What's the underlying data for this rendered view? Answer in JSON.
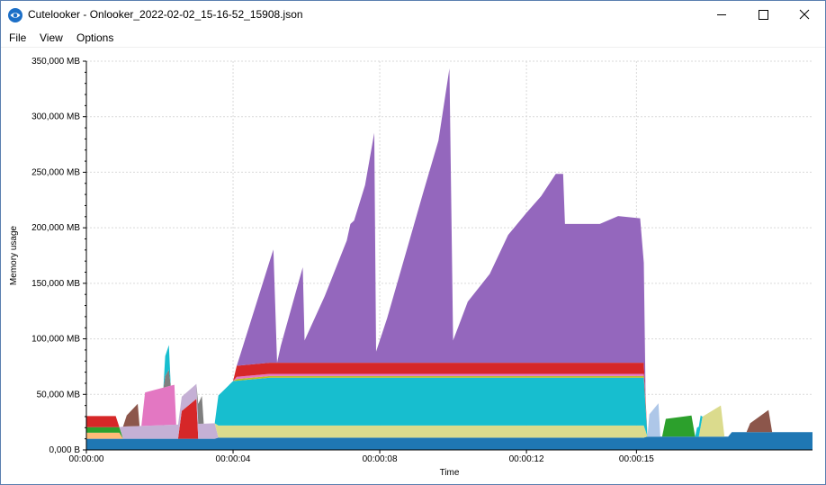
{
  "window": {
    "title": "Cutelooker - Onlooker_2022-02-02_15-16-52_15908.json",
    "icon": "eye-icon",
    "controls": {
      "minimize": "minimize-icon",
      "maximize": "maximize-icon",
      "close": "close-icon"
    }
  },
  "menu": {
    "items": [
      "File",
      "View",
      "Options"
    ]
  },
  "chart_data": {
    "type": "area",
    "stacked": true,
    "xlabel": "Time",
    "ylabel": "Memory usage",
    "x_unit": "seconds",
    "xlim": [
      0,
      19.8
    ],
    "ylim": [
      0,
      350000
    ],
    "x_ticks": [
      {
        "value": 0,
        "label": "00:00:00"
      },
      {
        "value": 4,
        "label": "00:00:04"
      },
      {
        "value": 8,
        "label": "00:00:08"
      },
      {
        "value": 12,
        "label": "00:00:12"
      },
      {
        "value": 15,
        "label": "00:00:15"
      }
    ],
    "y_ticks": [
      {
        "value": 0,
        "label": "0,000 B"
      },
      {
        "value": 50000,
        "label": "50,000 MB"
      },
      {
        "value": 100000,
        "label": "100,000 MB"
      },
      {
        "value": 150000,
        "label": "150,000 MB"
      },
      {
        "value": 200000,
        "label": "200,000 MB"
      },
      {
        "value": 250000,
        "label": "250,000 MB"
      },
      {
        "value": 300000,
        "label": "300,000 MB"
      },
      {
        "value": 350000,
        "label": "350,000 MB"
      }
    ],
    "grid": true,
    "legend": "none",
    "series": [
      {
        "color": "#1f77b4",
        "points": [
          [
            0,
            10000
          ],
          [
            3.5,
            10000
          ],
          [
            3.6,
            11000
          ],
          [
            13.0,
            11000
          ],
          [
            15.2,
            11000
          ],
          [
            15.3,
            12000
          ],
          [
            17.5,
            12000
          ],
          [
            17.6,
            16000
          ],
          [
            19.8,
            16000
          ]
        ]
      },
      {
        "color": "#ffbb78",
        "points": [
          [
            0,
            5500
          ],
          [
            0.9,
            5500
          ],
          [
            1.0,
            0
          ],
          [
            19.8,
            0
          ]
        ]
      },
      {
        "color": "#2ca02c",
        "points": [
          [
            0,
            5000
          ],
          [
            0.9,
            5000
          ],
          [
            1.0,
            0
          ],
          [
            15.7,
            0
          ],
          [
            15.8,
            16000
          ],
          [
            16.5,
            19000
          ],
          [
            16.6,
            0
          ],
          [
            19.8,
            0
          ]
        ]
      },
      {
        "color": "#d62728",
        "points": [
          [
            0,
            10000
          ],
          [
            0.8,
            10000
          ],
          [
            0.9,
            0
          ],
          [
            2.5,
            0
          ],
          [
            2.6,
            25000
          ],
          [
            3.0,
            36000
          ],
          [
            3.05,
            0
          ],
          [
            19.8,
            0
          ]
        ]
      },
      {
        "color": "#c5b0d5",
        "points": [
          [
            0,
            0
          ],
          [
            0.9,
            0
          ],
          [
            1.0,
            11000
          ],
          [
            3.5,
            14000
          ],
          [
            3.6,
            0
          ],
          [
            19.8,
            0
          ]
        ]
      },
      {
        "color": "#dbdb8d",
        "points": [
          [
            0,
            0
          ],
          [
            3.5,
            0
          ],
          [
            3.6,
            11000
          ],
          [
            15.2,
            11000
          ],
          [
            15.3,
            0
          ],
          [
            16.7,
            0
          ],
          [
            16.8,
            18000
          ],
          [
            17.3,
            28000
          ],
          [
            17.4,
            0
          ],
          [
            19.8,
            0
          ]
        ]
      },
      {
        "color": "#17becf",
        "points": [
          [
            0,
            0
          ],
          [
            3.5,
            0
          ],
          [
            3.6,
            27000
          ],
          [
            4.0,
            40000
          ],
          [
            5.0,
            43000
          ],
          [
            15.2,
            43000
          ],
          [
            15.3,
            0
          ],
          [
            19.8,
            0
          ]
        ]
      },
      {
        "color": "#bcbd22",
        "points": [
          [
            0,
            0
          ],
          [
            4.0,
            0
          ],
          [
            4.1,
            1500
          ],
          [
            15.2,
            1500
          ],
          [
            15.3,
            0
          ],
          [
            19.8,
            0
          ]
        ]
      },
      {
        "color": "#e377c2",
        "points": [
          [
            0,
            0
          ],
          [
            1.5,
            0
          ],
          [
            1.6,
            30000
          ],
          [
            2.4,
            36000
          ],
          [
            2.45,
            0
          ],
          [
            4.0,
            0
          ],
          [
            4.1,
            2000
          ],
          [
            15.2,
            2000
          ],
          [
            15.3,
            0
          ],
          [
            19.8,
            0
          ]
        ]
      },
      {
        "color": "#d62728",
        "points": [
          [
            0,
            0
          ],
          [
            4.0,
            0
          ],
          [
            4.1,
            10000
          ],
          [
            15.2,
            10000
          ],
          [
            15.3,
            0
          ],
          [
            19.8,
            0
          ]
        ]
      },
      {
        "color": "#8c564b",
        "points": [
          [
            0,
            0
          ],
          [
            1.0,
            0
          ],
          [
            1.1,
            10000
          ],
          [
            1.4,
            20000
          ],
          [
            1.45,
            0
          ],
          [
            18.0,
            0
          ],
          [
            18.1,
            8000
          ],
          [
            18.6,
            20000
          ],
          [
            18.7,
            0
          ],
          [
            19.8,
            0
          ]
        ]
      },
      {
        "color": "#9467bd",
        "points": [
          [
            0,
            0
          ],
          [
            4.1,
            0
          ],
          [
            4.2,
            10000
          ],
          [
            5.1,
            102000
          ],
          [
            5.2,
            0
          ],
          [
            5.3,
            15000
          ],
          [
            5.9,
            86000
          ],
          [
            5.95,
            20000
          ],
          [
            6.5,
            60000
          ],
          [
            7.1,
            110000
          ],
          [
            7.2,
            125000
          ],
          [
            7.2,
            125000
          ],
          [
            7.3,
            128000
          ],
          [
            7.6,
            160000
          ],
          [
            7.85,
            207000
          ],
          [
            7.9,
            10000
          ],
          [
            8.2,
            40000
          ],
          [
            9.2,
            155000
          ],
          [
            9.6,
            200000
          ],
          [
            9.9,
            265000
          ],
          [
            10.0,
            20000
          ],
          [
            10.4,
            55000
          ],
          [
            11.0,
            80000
          ],
          [
            11.5,
            115000
          ],
          [
            12.0,
            135000
          ],
          [
            12.4,
            150000
          ],
          [
            12.8,
            170000
          ],
          [
            13.0,
            170000
          ],
          [
            13.05,
            125000
          ],
          [
            14.0,
            125000
          ],
          [
            14.5,
            132000
          ],
          [
            15.1,
            130000
          ],
          [
            15.2,
            90000
          ],
          [
            15.25,
            0
          ],
          [
            19.8,
            0
          ]
        ]
      },
      {
        "color": "#7f7f7f",
        "points": [
          [
            0,
            0
          ],
          [
            2.1,
            0
          ],
          [
            2.15,
            10000
          ],
          [
            2.25,
            15000
          ],
          [
            2.3,
            0
          ],
          [
            3.0,
            0
          ],
          [
            3.05,
            18000
          ],
          [
            3.15,
            25000
          ],
          [
            3.2,
            0
          ],
          [
            19.8,
            0
          ]
        ]
      },
      {
        "color": "#17becf",
        "points": [
          [
            0,
            0
          ],
          [
            2.1,
            0
          ],
          [
            2.15,
            18000
          ],
          [
            2.25,
            22000
          ],
          [
            2.3,
            0
          ],
          [
            16.6,
            0
          ],
          [
            16.65,
            8000
          ],
          [
            16.75,
            10000
          ],
          [
            16.8,
            0
          ],
          [
            19.8,
            0
          ]
        ]
      },
      {
        "color": "#aec7e8",
        "points": [
          [
            0,
            0
          ],
          [
            15.3,
            0
          ],
          [
            15.35,
            20000
          ],
          [
            15.6,
            30000
          ],
          [
            15.65,
            0
          ],
          [
            19.8,
            0
          ]
        ]
      }
    ]
  }
}
